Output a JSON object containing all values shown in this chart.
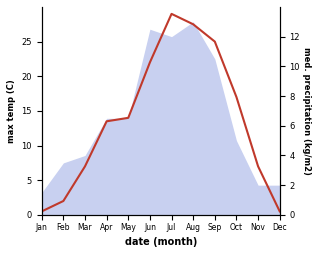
{
  "months": [
    "Jan",
    "Feb",
    "Mar",
    "Apr",
    "May",
    "Jun",
    "Jul",
    "Aug",
    "Sep",
    "Oct",
    "Nov",
    "Dec"
  ],
  "temp": [
    0.5,
    2.0,
    7.0,
    13.5,
    14.0,
    22.0,
    29.0,
    27.5,
    25.0,
    17.0,
    7.0,
    0.5
  ],
  "precip_kg": [
    1.5,
    3.5,
    4.0,
    6.5,
    6.5,
    12.5,
    12.0,
    13.0,
    10.5,
    5.0,
    2.0,
    2.0
  ],
  "temp_color": "#c0392b",
  "precip_fill_color": "#c8d0f0",
  "temp_ylim": [
    0,
    30
  ],
  "precip_ylim_kg": [
    0,
    14
  ],
  "xlabel": "date (month)",
  "ylabel_left": "max temp (C)",
  "ylabel_right": "med. precipitation (kg/m2)",
  "left_yticks": [
    0,
    5,
    10,
    15,
    20,
    25
  ],
  "right_yticks": [
    0,
    2,
    4,
    6,
    8,
    10,
    12
  ]
}
